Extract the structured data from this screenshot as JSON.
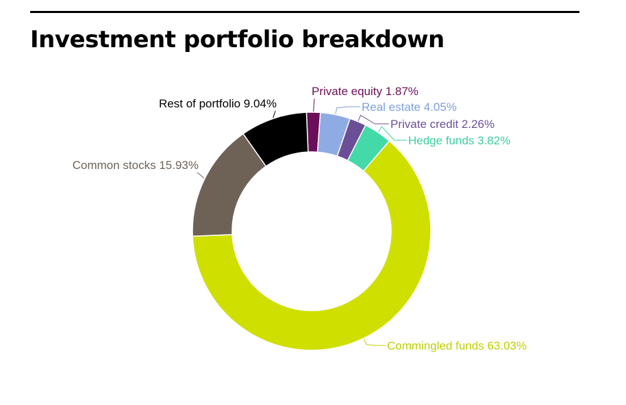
{
  "chart_data": {
    "type": "pie",
    "variant": "donut",
    "title": "Investment portfolio breakdown",
    "start_category": "Private equity",
    "direction": "clockwise",
    "slices": [
      {
        "name": "Private equity",
        "value": 1.87,
        "label": "Private equity 1.87%",
        "color": "#6b0f5a",
        "label_color": "#6b0f5a"
      },
      {
        "name": "Real estate",
        "value": 4.05,
        "label": "Real estate 4.05%",
        "color": "#8eabe3",
        "label_color": "#7d9fdc"
      },
      {
        "name": "Private credit",
        "value": 2.26,
        "label": "Private credit 2.26%",
        "color": "#6b4f96",
        "label_color": "#6b4f96"
      },
      {
        "name": "Hedge funds",
        "value": 3.82,
        "label": "Hedge funds 3.82%",
        "color": "#43d9a8",
        "label_color": "#3ccf9e"
      },
      {
        "name": "Commingled funds",
        "value": 63.03,
        "label": "Commingled funds 63.03%",
        "color": "#cfdf00",
        "label_color": "#bfcf00"
      },
      {
        "name": "Common stocks",
        "value": 15.93,
        "label": "Common stocks 15.93%",
        "color": "#6e6257",
        "label_color": "#6e6257"
      },
      {
        "name": "Rest of portfolio",
        "value": 9.04,
        "label": "Rest of portfolio 9.04%",
        "color": "#000000",
        "label_color": "#000000"
      }
    ]
  }
}
